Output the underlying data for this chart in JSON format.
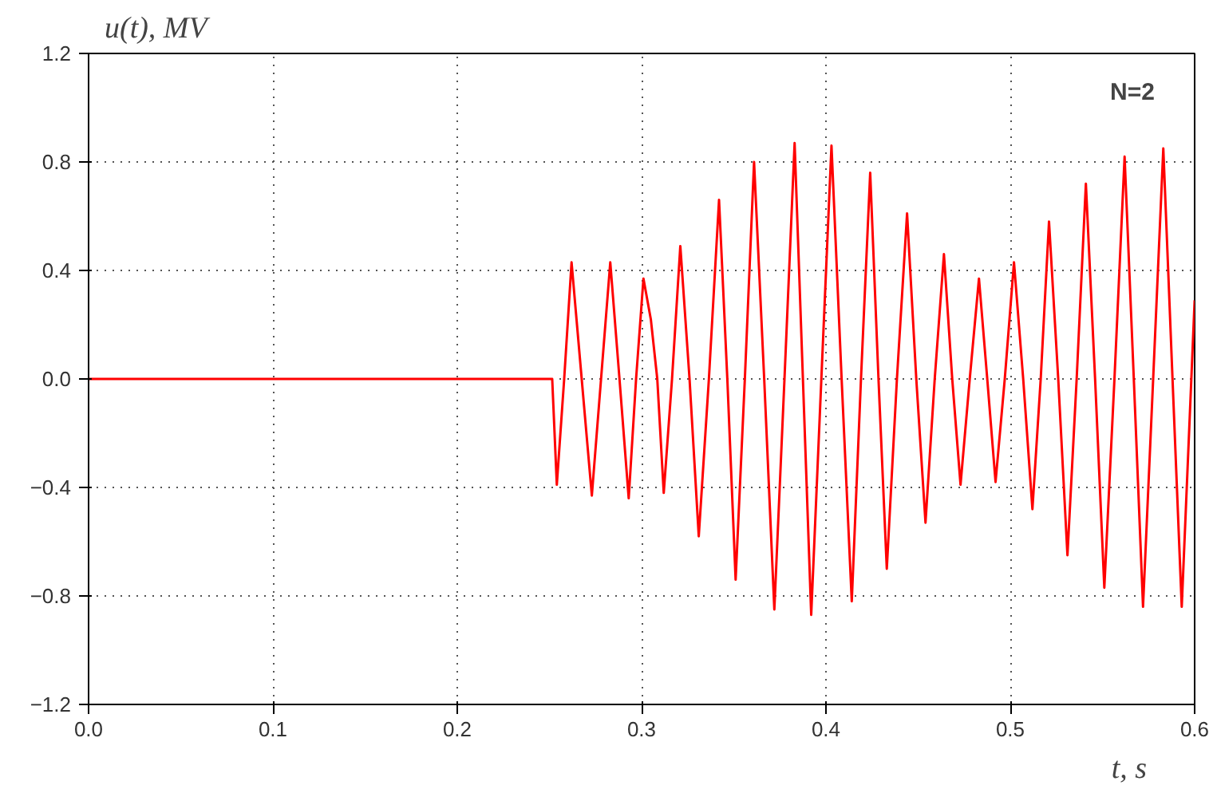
{
  "chart_data": {
    "type": "line",
    "xlabel": "t, s",
    "ylabel": "u(t), MV",
    "annotations": [
      "N=2"
    ],
    "series": [
      {
        "color": "#ff0000",
        "x": [
          0,
          0.2515,
          0.254,
          0.258,
          0.262,
          0.2675,
          0.273,
          0.278,
          0.283,
          0.288,
          0.293,
          0.297,
          0.301,
          0.305,
          0.3085,
          0.312,
          0.3165,
          0.321,
          0.326,
          0.331,
          0.3365,
          0.342,
          0.3465,
          0.351,
          0.356,
          0.361,
          0.3665,
          0.372,
          0.3775,
          0.383,
          0.3875,
          0.392,
          0.3975,
          0.403,
          0.4085,
          0.414,
          0.419,
          0.424,
          0.4285,
          0.433,
          0.4385,
          0.444,
          0.449,
          0.454,
          0.459,
          0.464,
          0.4685,
          0.473,
          0.478,
          0.483,
          0.4875,
          0.492,
          0.497,
          0.502,
          0.507,
          0.512,
          0.5165,
          0.521,
          0.526,
          0.531,
          0.536,
          0.541,
          0.546,
          0.551,
          0.5565,
          0.562,
          0.567,
          0.572,
          0.5775,
          0.583,
          0.588,
          0.593,
          0.6
        ],
        "values": [
          0,
          0,
          -0.39,
          0,
          0.43,
          0,
          -0.43,
          0,
          0.43,
          0,
          -0.44,
          0,
          0.37,
          0.22,
          0,
          -0.42,
          0,
          0.49,
          0,
          -0.58,
          0,
          0.66,
          0,
          -0.74,
          0,
          0.8,
          0,
          -0.85,
          0,
          0.87,
          0,
          -0.87,
          0,
          0.86,
          0,
          -0.82,
          0,
          0.76,
          0,
          -0.7,
          0,
          0.61,
          0,
          -0.53,
          0,
          0.46,
          0,
          -0.39,
          0,
          0.37,
          0,
          -0.38,
          0,
          0.43,
          0,
          -0.48,
          0,
          0.58,
          0,
          -0.65,
          0,
          0.72,
          0,
          -0.77,
          0,
          0.82,
          0,
          -0.84,
          0,
          0.85,
          0,
          -0.84,
          0.29
        ]
      }
    ],
    "xlim": [
      0,
      0.6
    ],
    "ylim": [
      -1.2,
      1.2
    ],
    "xticks": [
      {
        "value": 0,
        "label": "0.0"
      },
      0.1,
      0.2,
      0.3,
      0.4,
      0.5,
      0.6
    ],
    "yticks": [
      -1.2,
      -0.8,
      -0.4,
      {
        "value": 0,
        "label": "0.0"
      },
      0.4,
      0.8,
      1.2
    ],
    "grid": true,
    "marker": "none",
    "line_style": "solid"
  }
}
